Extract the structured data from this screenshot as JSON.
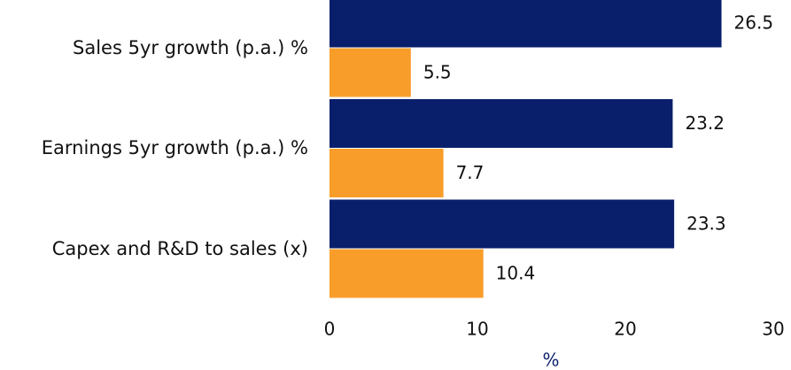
{
  "chart_data": {
    "type": "bar",
    "orientation": "horizontal",
    "categories": [
      "Sales 5yr growth (p.a.) %",
      "Earnings 5yr growth (p.a.) %",
      "Capex and R&D to sales (x)"
    ],
    "series": [
      {
        "color": "#0a1f6b",
        "values": [
          26.5,
          23.2,
          23.3
        ]
      },
      {
        "color": "#f99d2a",
        "values": [
          5.5,
          7.7,
          10.4
        ]
      }
    ],
    "xlabel": "%",
    "xlim": [
      0,
      30
    ],
    "xticks": [
      0,
      10,
      20,
      30
    ],
    "grid": false
  }
}
